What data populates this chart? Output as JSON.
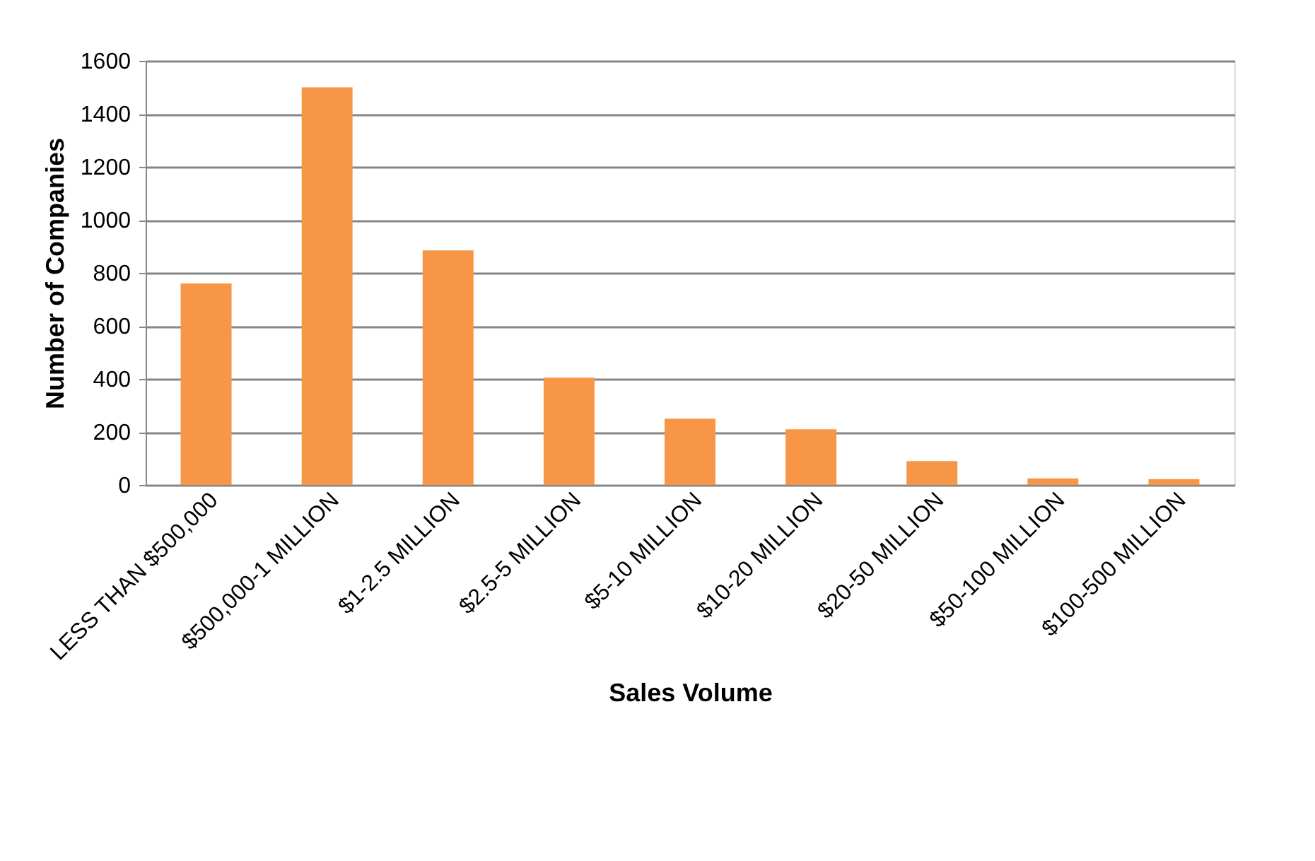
{
  "chart_data": {
    "type": "bar",
    "xlabel": "Sales Volume",
    "ylabel": "Number of Companies",
    "categories": [
      "LESS THAN $500,000",
      "$500,000-1 MILLION",
      "$1-2.5 MILLION",
      "$2.5-5 MILLION",
      "$5-10 MILLION",
      "$10-20 MILLION",
      "$20-50 MILLION",
      "$50-100 MILLION",
      "$100-500 MILLION"
    ],
    "values": [
      760,
      1500,
      885,
      405,
      250,
      210,
      90,
      25,
      22
    ],
    "color": "#f79646",
    "ylim": [
      0,
      1600
    ],
    "yticks": [
      0,
      200,
      400,
      600,
      800,
      1000,
      1200,
      1400,
      1600
    ],
    "grid": "y"
  }
}
